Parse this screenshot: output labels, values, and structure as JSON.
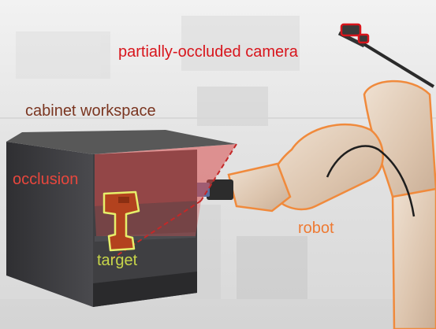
{
  "labels": {
    "camera": "partially-occluded camera",
    "cabinet": "cabinet workspace",
    "occlusion": "occlusion",
    "robot": "robot",
    "target": "target"
  },
  "colors": {
    "camera_label": "#d8151c",
    "cabinet_label": "#7a3520",
    "occlusion_label": "#e8473d",
    "robot_label": "#ee7a33",
    "target_label": "#c8d64a",
    "robot_outline": "#f08a3c",
    "target_outline": "#e6ef6a",
    "occlusion_fill": "#d94c4c",
    "cabinet_body": "#3f3f42",
    "background": "#e9e9e9"
  }
}
